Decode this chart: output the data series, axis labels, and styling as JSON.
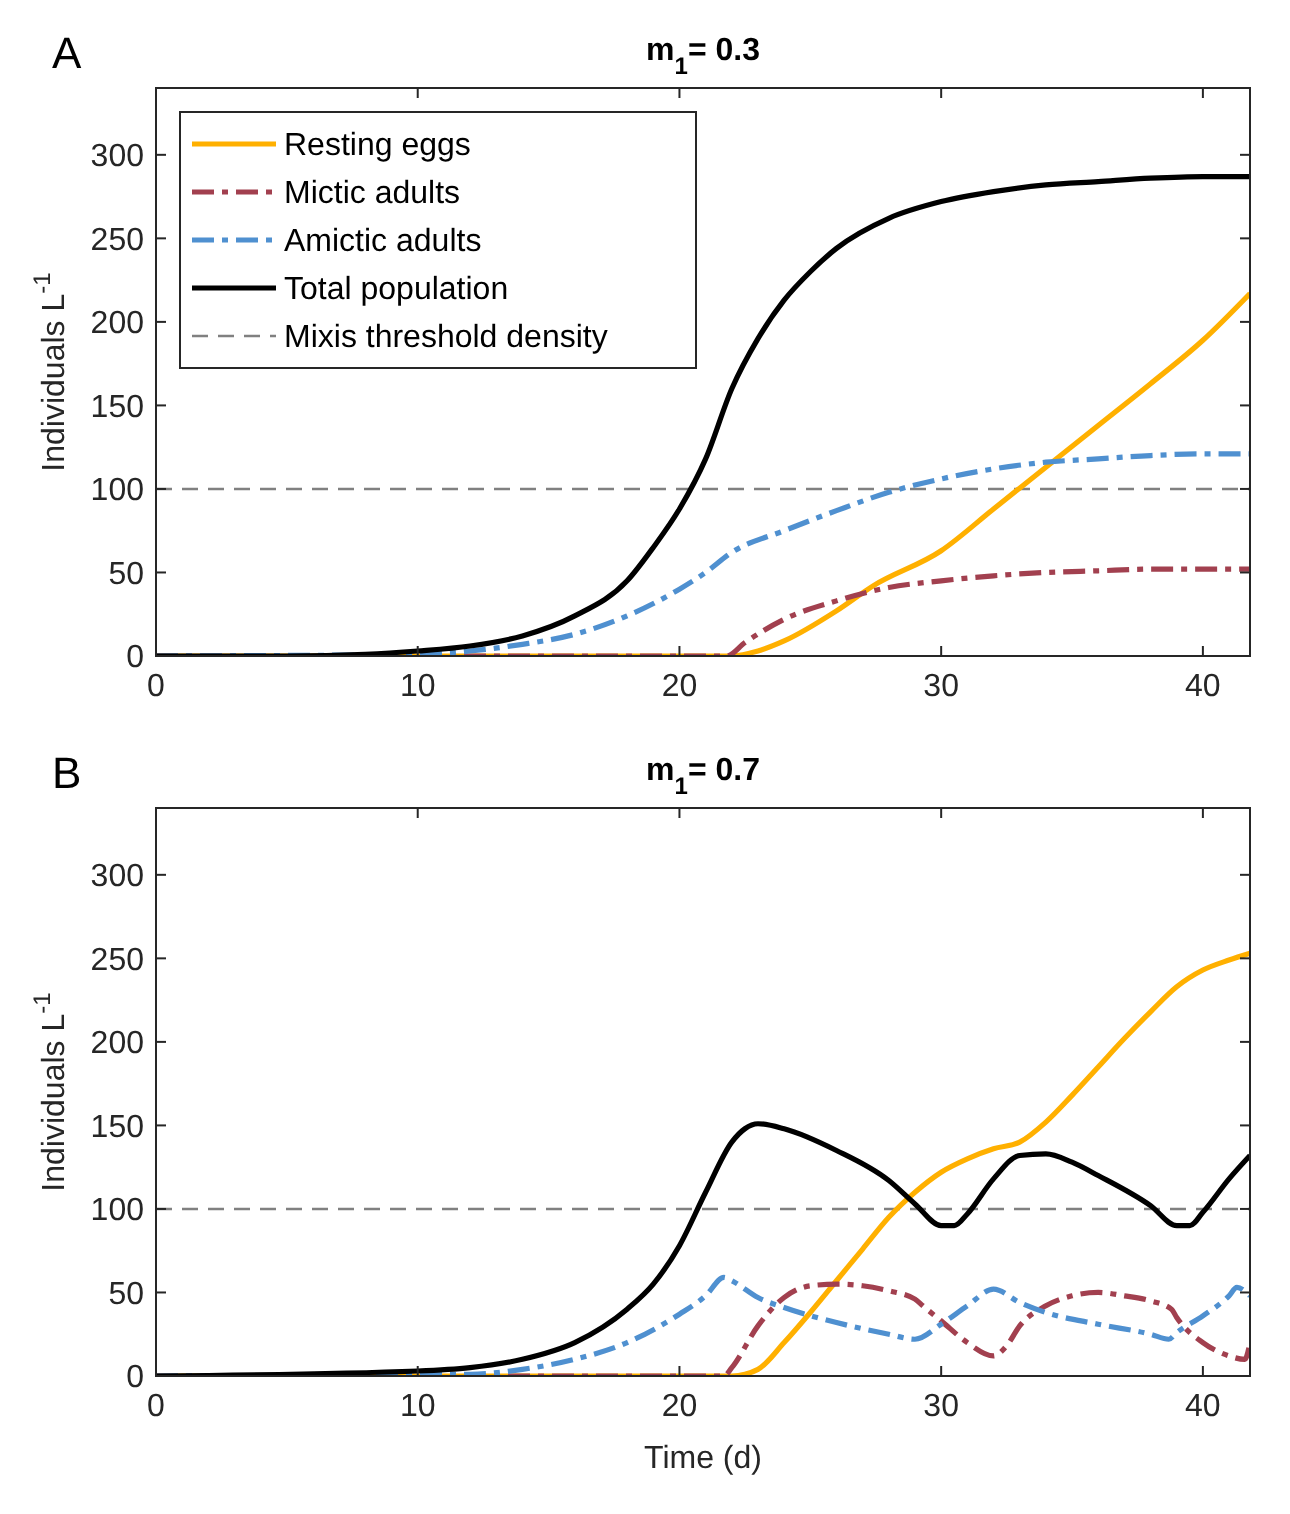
{
  "chart_data": [
    {
      "type": "line",
      "title": "m$_{1}$= 0.3",
      "ylabel": "Individuals L$^{-1}$",
      "annotations": [
        "A"
      ],
      "xlim": [
        0,
        41.8
      ],
      "ylim": [
        0,
        340
      ],
      "xticks": [
        0,
        10,
        20,
        30,
        40
      ],
      "yticks": [
        0,
        50,
        100,
        150,
        200,
        250,
        300
      ],
      "grid": false,
      "legend": "top left",
      "marker": "none",
      "ref_lines": [
        {
          "axis": "y",
          "value": 100,
          "label": "Mixis threshold density",
          "color": "#808080",
          "line_style": "dashed"
        }
      ],
      "series": [
        {
          "name": "Resting eggs",
          "color": "#ffb000",
          "line_style": "solid",
          "x": [
            0,
            22,
            23,
            24,
            26,
            27.4,
            30,
            32,
            34,
            36,
            38,
            40,
            41.8
          ],
          "values": [
            0,
            0,
            3,
            9,
            27,
            42,
            63,
            88,
            113,
            138,
            163,
            189,
            217
          ]
        },
        {
          "name": "Mictic adults",
          "color": "#a2404f",
          "line_style": "dashed",
          "x": [
            0,
            21.8,
            22.5,
            24,
            26,
            28,
            30,
            32,
            34,
            36,
            38,
            40,
            41.8
          ],
          "values": [
            0,
            0,
            8,
            22,
            33,
            41,
            45,
            48,
            50,
            51,
            52,
            52,
            52
          ]
        },
        {
          "name": "Amictic adults",
          "color": "#4f90d0",
          "line_style": "dashed",
          "x": [
            0,
            10,
            12,
            14,
            16,
            18,
            20,
            21,
            22,
            24,
            26,
            28,
            30,
            32,
            34,
            36,
            38,
            40,
            41.8
          ],
          "values": [
            0,
            1,
            3,
            7,
            13,
            24,
            40,
            50,
            62,
            75,
            87,
            98,
            106,
            112,
            116,
            118,
            120,
            121,
            121
          ]
        },
        {
          "name": "Total population",
          "color": "#000000",
          "line_style": "solid",
          "x": [
            0,
            5,
            8,
            10,
            12,
            14,
            16,
            18,
            19,
            20,
            21,
            22,
            23,
            24,
            25,
            26,
            28,
            30,
            32,
            34,
            36,
            38,
            40,
            41.8
          ],
          "values": [
            0,
            0,
            1,
            3,
            6,
            12,
            24,
            45,
            65,
            88,
            118,
            160,
            190,
            213,
            230,
            244,
            262,
            272,
            278,
            282,
            284,
            286,
            287,
            287
          ]
        }
      ]
    },
    {
      "type": "line",
      "title": "m$_{1}$= 0.7",
      "xlabel": "Time (d)",
      "ylabel": "Individuals L$^{-1}$",
      "annotations": [
        "B"
      ],
      "xlim": [
        0,
        41.8
      ],
      "ylim": [
        0,
        340
      ],
      "xticks": [
        0,
        10,
        20,
        30,
        40
      ],
      "yticks": [
        0,
        50,
        100,
        150,
        200,
        250,
        300
      ],
      "grid": false,
      "legend": false,
      "marker": "none",
      "ref_lines": [
        {
          "axis": "y",
          "value": 100,
          "color": "#808080",
          "line_style": "dashed"
        }
      ],
      "series": [
        {
          "color": "#ffb000",
          "line_style": "solid",
          "x": [
            0,
            22,
            23,
            24,
            25,
            26,
            27,
            28,
            29,
            30,
            31,
            32,
            33,
            34,
            35,
            36,
            37,
            38,
            39,
            40,
            41,
            41.8
          ],
          "values": [
            0,
            0,
            4,
            20,
            38,
            57,
            76,
            95,
            110,
            122,
            130,
            136,
            140,
            152,
            168,
            185,
            202,
            218,
            233,
            243,
            249,
            253
          ]
        },
        {
          "color": "#a2404f",
          "line_style": "dashed",
          "x": [
            0,
            21.7,
            22,
            23,
            24,
            25,
            26,
            27,
            28,
            29,
            29.3,
            30,
            31,
            32,
            32.5,
            33,
            34,
            35,
            36,
            37,
            38,
            38.8,
            39,
            40,
            41,
            41.6,
            41.8
          ],
          "values": [
            0,
            0,
            5,
            30,
            47,
            54,
            55,
            54,
            51,
            46,
            42,
            33,
            20,
            12,
            18,
            30,
            42,
            48,
            50,
            48,
            45,
            40,
            35,
            20,
            12,
            10,
            20
          ]
        },
        {
          "color": "#4f90d0",
          "line_style": "dashed",
          "x": [
            0,
            12,
            14,
            16,
            18,
            20,
            21,
            21.7,
            22,
            23,
            24,
            26,
            28,
            29,
            30,
            31,
            32,
            33,
            34,
            36,
            38,
            38.7,
            39,
            40,
            41,
            41.3,
            41.8
          ],
          "values": [
            0,
            1,
            4,
            10,
            20,
            37,
            48,
            59,
            57,
            47,
            41,
            32,
            25,
            22,
            31,
            42,
            52,
            44,
            38,
            31,
            25,
            22,
            26,
            36,
            48,
            53,
            48
          ]
        },
        {
          "color": "#000000",
          "line_style": "solid",
          "x": [
            0,
            10,
            12,
            14,
            16,
            18,
            19,
            20,
            21,
            22,
            22.5,
            23,
            24,
            26,
            28,
            29,
            30,
            30.5,
            31,
            32,
            33,
            34,
            35,
            36,
            38,
            39,
            39.5,
            40,
            41,
            41.8
          ],
          "values": [
            0,
            3,
            5,
            10,
            20,
            40,
            55,
            78,
            110,
            140,
            148,
            151,
            148,
            135,
            117,
            103,
            90,
            90,
            97,
            118,
            132,
            133,
            128,
            120,
            102,
            90,
            90,
            98,
            118,
            132
          ]
        }
      ]
    }
  ]
}
